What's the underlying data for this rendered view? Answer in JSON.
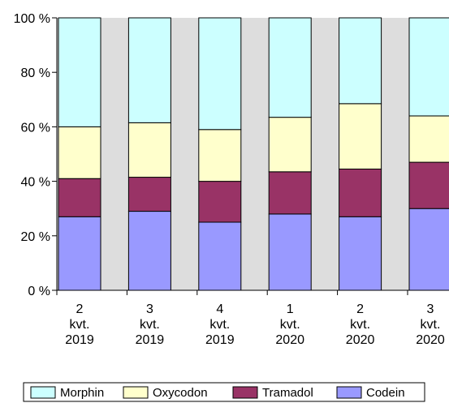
{
  "chart_data": {
    "type": "bar",
    "stacked": true,
    "percent_stacked": true,
    "categories": [
      [
        "2",
        "kvt.",
        "2019"
      ],
      [
        "3",
        "kvt.",
        "2019"
      ],
      [
        "4",
        "kvt.",
        "2019"
      ],
      [
        "1",
        "kvt.",
        "2020"
      ],
      [
        "2",
        "kvt.",
        "2020"
      ],
      [
        "3",
        "kvt.",
        "2020"
      ]
    ],
    "series": [
      {
        "name": "Codein",
        "color": "#9999ff",
        "values": [
          27,
          29,
          25,
          28,
          27,
          30
        ]
      },
      {
        "name": "Tramadol",
        "color": "#993366",
        "values": [
          14,
          12.5,
          15,
          15.5,
          17.5,
          17
        ]
      },
      {
        "name": "Oxycodon",
        "color": "#ffffcc",
        "values": [
          19,
          20,
          19,
          20,
          24,
          17
        ]
      },
      {
        "name": "Morphin",
        "color": "#ccffff",
        "values": [
          40,
          38.5,
          41,
          36.5,
          31.5,
          36
        ]
      }
    ],
    "legend_order": [
      "Morphin",
      "Oxycodon",
      "Tramadol",
      "Codein"
    ],
    "ylim": [
      0,
      100
    ],
    "yticks": [
      "0 %",
      "20 %",
      "40 %",
      "60 %",
      "80 %",
      "100 %"
    ],
    "plot_background": "#dddddd",
    "grid": false,
    "legend_position": "bottom",
    "xlabel": "",
    "ylabel": "",
    "title": ""
  }
}
